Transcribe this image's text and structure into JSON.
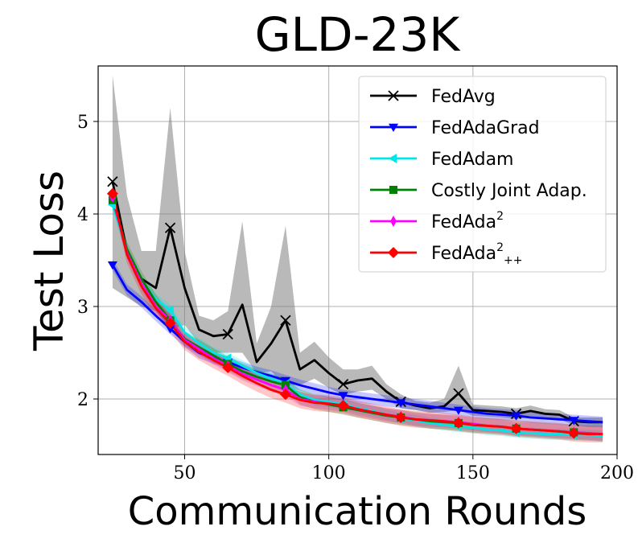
{
  "chart_data": {
    "type": "line",
    "title": "GLD-23K",
    "xlabel": "Communication Rounds",
    "ylabel": "Test Loss",
    "xlim": [
      20,
      200
    ],
    "ylim": [
      1.4,
      5.6
    ],
    "xticks": [
      50,
      100,
      150,
      200
    ],
    "yticks": [
      2,
      3,
      4,
      5
    ],
    "xtick_labels": [
      "50",
      "100",
      "150",
      "200"
    ],
    "ytick_labels": [
      "2",
      "3",
      "4",
      "5"
    ],
    "grid": true,
    "legend_position": "top-right",
    "series": [
      {
        "name": "FedAvg",
        "color": "#000000",
        "marker": "x",
        "band_color": "#808080",
        "x": [
          25,
          30,
          35,
          40,
          45,
          50,
          55,
          60,
          65,
          70,
          75,
          80,
          85,
          90,
          95,
          100,
          105,
          110,
          115,
          120,
          125,
          130,
          135,
          140,
          145,
          150,
          155,
          160,
          165,
          170,
          175,
          180,
          185,
          190,
          195
        ],
        "y": [
          4.35,
          3.6,
          3.3,
          3.2,
          3.85,
          3.2,
          2.75,
          2.68,
          2.7,
          3.02,
          2.4,
          2.6,
          2.85,
          2.32,
          2.42,
          2.28,
          2.16,
          2.2,
          2.22,
          2.08,
          1.97,
          1.93,
          1.9,
          1.92,
          2.06,
          1.88,
          1.87,
          1.86,
          1.84,
          1.87,
          1.84,
          1.83,
          1.76,
          1.75,
          1.75
        ],
        "upper": [
          5.5,
          4.2,
          3.6,
          3.6,
          5.15,
          3.6,
          2.9,
          2.85,
          2.95,
          3.92,
          2.6,
          3.0,
          3.87,
          2.5,
          2.62,
          2.45,
          2.32,
          2.32,
          2.36,
          2.16,
          2.05,
          1.98,
          1.96,
          2.0,
          2.36,
          1.94,
          1.93,
          1.92,
          1.9,
          1.93,
          1.89,
          1.88,
          1.8,
          1.8,
          1.8
        ],
        "lower": [
          3.2,
          3.1,
          3.0,
          2.95,
          2.75,
          2.8,
          2.6,
          2.5,
          2.5,
          2.5,
          2.28,
          2.3,
          2.15,
          2.15,
          2.22,
          2.12,
          2.04,
          2.08,
          2.1,
          2.0,
          1.9,
          1.88,
          1.85,
          1.86,
          1.88,
          1.82,
          1.81,
          1.8,
          1.78,
          1.81,
          1.79,
          1.78,
          1.72,
          1.7,
          1.7
        ]
      },
      {
        "name": "FedAdaGrad",
        "color": "#0000ff",
        "marker": "v",
        "x": [
          25,
          30,
          35,
          40,
          45,
          50,
          55,
          60,
          65,
          70,
          75,
          80,
          85,
          90,
          95,
          100,
          105,
          110,
          115,
          120,
          125,
          130,
          135,
          140,
          145,
          150,
          155,
          160,
          165,
          170,
          175,
          180,
          185,
          190,
          195
        ],
        "y": [
          3.45,
          3.18,
          3.05,
          2.9,
          2.76,
          2.62,
          2.5,
          2.44,
          2.4,
          2.34,
          2.29,
          2.25,
          2.2,
          2.15,
          2.11,
          2.07,
          2.04,
          2.02,
          2.0,
          1.98,
          1.96,
          1.94,
          1.92,
          1.9,
          1.88,
          1.86,
          1.84,
          1.83,
          1.82,
          1.8,
          1.79,
          1.78,
          1.77,
          1.76,
          1.75
        ],
        "band": 0.06
      },
      {
        "name": "FedAdam",
        "color": "#00e6e6",
        "marker": "<",
        "x": [
          25,
          30,
          35,
          40,
          45,
          50,
          55,
          60,
          65,
          70,
          75,
          80,
          85,
          90,
          95,
          100,
          105,
          110,
          115,
          120,
          125,
          130,
          135,
          140,
          145,
          150,
          155,
          160,
          165,
          170,
          175,
          180,
          185,
          190,
          195
        ],
        "y": [
          4.1,
          3.6,
          3.28,
          3.08,
          2.96,
          2.72,
          2.6,
          2.5,
          2.44,
          2.36,
          2.28,
          2.22,
          2.16,
          2.05,
          1.99,
          1.97,
          1.94,
          1.9,
          1.87,
          1.83,
          1.79,
          1.77,
          1.74,
          1.72,
          1.7,
          1.69,
          1.67,
          1.66,
          1.64,
          1.63,
          1.62,
          1.62,
          1.61,
          1.61,
          1.6
        ],
        "band": 0.06
      },
      {
        "name": "Costly Joint Adap.",
        "color": "#008000",
        "marker": "s",
        "x": [
          25,
          30,
          35,
          40,
          45,
          50,
          55,
          60,
          65,
          70,
          75,
          80,
          85,
          90,
          95,
          100,
          105,
          110,
          115,
          120,
          125,
          130,
          135,
          140,
          145,
          150,
          155,
          160,
          165,
          170,
          175,
          180,
          185,
          190,
          195
        ],
        "y": [
          4.15,
          3.62,
          3.3,
          3.05,
          2.85,
          2.65,
          2.56,
          2.47,
          2.38,
          2.3,
          2.24,
          2.19,
          2.15,
          2.02,
          1.97,
          1.94,
          1.91,
          1.88,
          1.85,
          1.82,
          1.8,
          1.78,
          1.76,
          1.75,
          1.74,
          1.72,
          1.71,
          1.7,
          1.68,
          1.67,
          1.66,
          1.65,
          1.64,
          1.63,
          1.62
        ],
        "band": 0.08
      },
      {
        "name": "FedAda²",
        "color": "#ff00ff",
        "marker": "d",
        "x": [
          25,
          30,
          35,
          40,
          45,
          50,
          55,
          60,
          65,
          70,
          75,
          80,
          85,
          90,
          95,
          100,
          105,
          110,
          115,
          120,
          125,
          130,
          135,
          140,
          145,
          150,
          155,
          160,
          165,
          170,
          175,
          180,
          185,
          190,
          195
        ],
        "y": [
          4.18,
          3.58,
          3.25,
          3.0,
          2.85,
          2.64,
          2.54,
          2.44,
          2.36,
          2.27,
          2.21,
          2.15,
          2.1,
          2.0,
          1.97,
          1.95,
          1.93,
          1.89,
          1.86,
          1.83,
          1.81,
          1.78,
          1.77,
          1.76,
          1.75,
          1.73,
          1.71,
          1.7,
          1.68,
          1.67,
          1.66,
          1.65,
          1.64,
          1.63,
          1.62
        ],
        "band": 0.07
      },
      {
        "name": "FedAda²₊₊",
        "color": "#ff0000",
        "marker": "D",
        "x": [
          25,
          30,
          35,
          40,
          45,
          50,
          55,
          60,
          65,
          70,
          75,
          80,
          85,
          90,
          95,
          100,
          105,
          110,
          115,
          120,
          125,
          130,
          135,
          140,
          145,
          150,
          155,
          160,
          165,
          170,
          175,
          180,
          185,
          190,
          195
        ],
        "y": [
          4.22,
          3.56,
          3.22,
          2.98,
          2.82,
          2.62,
          2.51,
          2.42,
          2.34,
          2.25,
          2.17,
          2.1,
          2.05,
          1.99,
          1.96,
          1.95,
          1.93,
          1.89,
          1.86,
          1.83,
          1.8,
          1.78,
          1.77,
          1.76,
          1.74,
          1.72,
          1.71,
          1.7,
          1.68,
          1.67,
          1.66,
          1.65,
          1.63,
          1.62,
          1.62
        ],
        "band": 0.09
      }
    ],
    "legend_entries": [
      {
        "base": "FedAvg",
        "sup": "",
        "sub": ""
      },
      {
        "base": "FedAdaGrad",
        "sup": "",
        "sub": ""
      },
      {
        "base": "FedAdam",
        "sup": "",
        "sub": ""
      },
      {
        "base": "Costly Joint Adap.",
        "sup": "",
        "sub": ""
      },
      {
        "base": "FedAda",
        "sup": "2",
        "sub": ""
      },
      {
        "base": "FedAda",
        "sup": "2",
        "sub": "++"
      }
    ]
  }
}
